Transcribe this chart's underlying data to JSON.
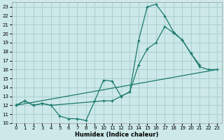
{
  "xlabel": "Humidex (Indice chaleur)",
  "bg_color": "#cce8e8",
  "grid_color": "#aacfcf",
  "line_color": "#1a7a6e",
  "xlim": [
    -0.5,
    23.5
  ],
  "ylim": [
    10,
    23.5
  ],
  "xticks": [
    0,
    1,
    2,
    3,
    4,
    5,
    6,
    7,
    8,
    9,
    10,
    11,
    12,
    13,
    14,
    15,
    16,
    17,
    18,
    19,
    20,
    21,
    22,
    23
  ],
  "yticks": [
    10,
    11,
    12,
    13,
    14,
    15,
    16,
    17,
    18,
    19,
    20,
    21,
    22,
    23
  ],
  "line1_x": [
    0,
    1,
    2,
    3,
    4,
    5,
    6,
    7,
    8,
    9,
    10,
    11,
    12,
    13,
    14,
    15,
    16,
    17,
    18,
    19,
    20,
    21
  ],
  "line1_y": [
    12,
    12.5,
    12,
    12.2,
    12,
    10.8,
    10.5,
    10.5,
    10.3,
    12.5,
    14.8,
    14.7,
    13,
    13.5,
    19.2,
    23.0,
    23.3,
    22.0,
    20.2,
    19.3,
    17.8,
    16.5
  ],
  "line2_x": [
    0,
    1,
    2,
    3,
    4,
    10,
    11,
    12,
    13,
    14,
    15,
    16,
    17,
    18,
    19,
    20,
    21,
    22,
    23
  ],
  "line2_y": [
    12,
    12.5,
    12,
    12.2,
    12,
    12.5,
    12.5,
    13,
    13.5,
    16.5,
    18.3,
    19.0,
    20.8,
    20.1,
    19.3,
    17.8,
    16.3,
    16.0,
    16.0
  ],
  "line3_x": [
    0,
    23
  ],
  "line3_y": [
    12,
    16
  ]
}
